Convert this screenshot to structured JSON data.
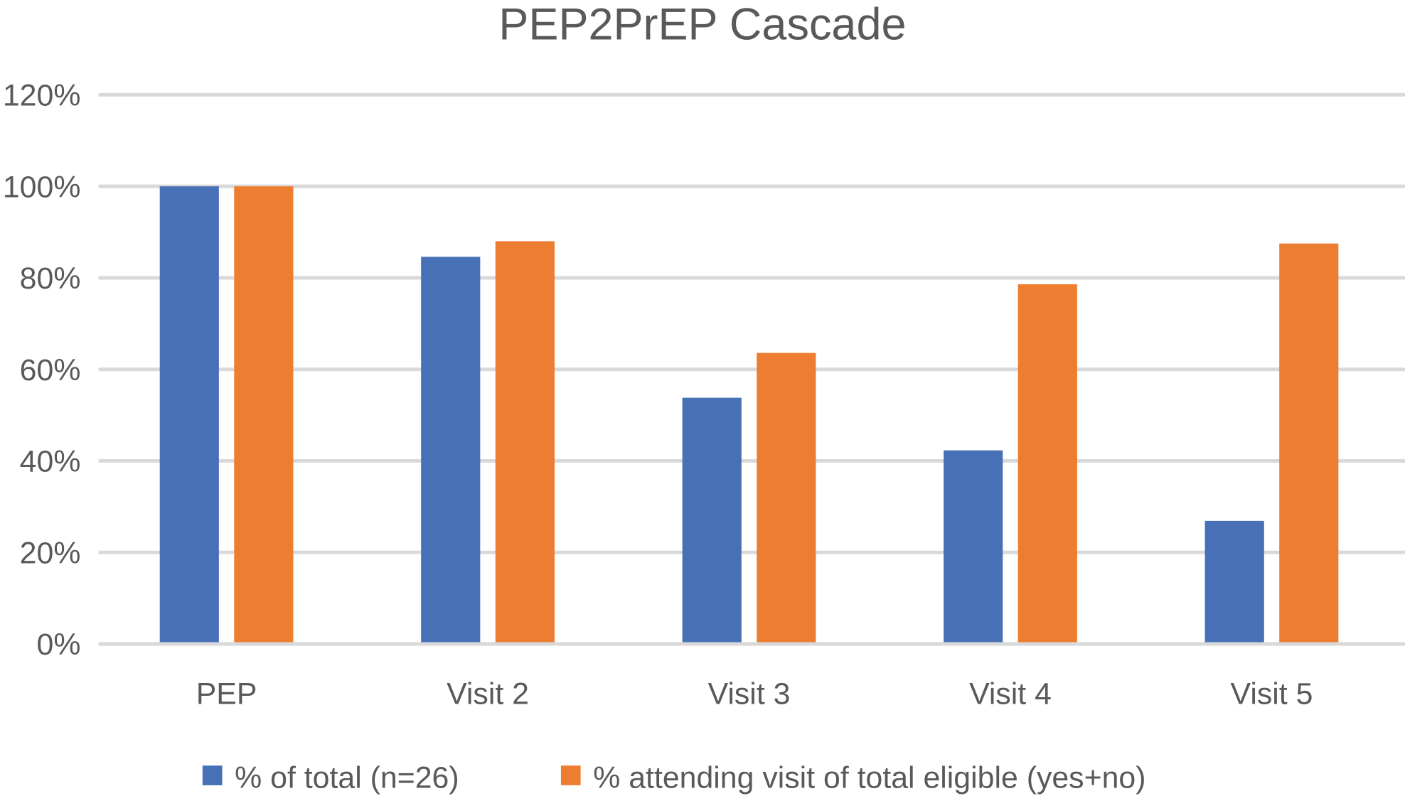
{
  "chart_data": {
    "type": "bar",
    "title": "PEP2PrEP Cascade",
    "xlabel": "",
    "ylabel": "",
    "categories": [
      "PEP",
      "Visit 2",
      "Visit 3",
      "Visit 4",
      "Visit 5"
    ],
    "series": [
      {
        "name": "% of total (n=26)",
        "color": "#4770B7",
        "values": [
          100,
          84.6,
          53.8,
          42.3,
          26.9
        ]
      },
      {
        "name": "% attending visit of total eligible (yes+no)",
        "color": "#ED7D31",
        "values": [
          100,
          88.0,
          63.6,
          78.6,
          87.5
        ]
      }
    ],
    "ylim": [
      0,
      120
    ],
    "yticks": [
      "0%",
      "20%",
      "40%",
      "60%",
      "80%",
      "100%",
      "120%"
    ],
    "grid": true,
    "legend": "bottom"
  }
}
